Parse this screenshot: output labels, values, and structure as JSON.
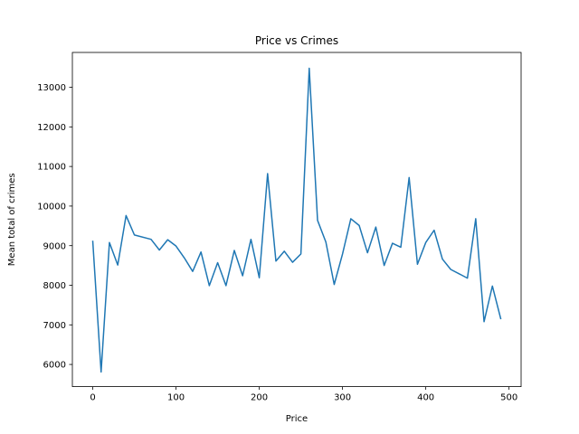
{
  "chart_data": {
    "type": "line",
    "title": "Price vs Crimes",
    "xlabel": "Price",
    "ylabel": "Mean total of crimes",
    "xlim": [
      -24.5,
      514.5
    ],
    "ylim": [
      5440,
      13880
    ],
    "xticks": [
      0,
      100,
      200,
      300,
      400,
      500
    ],
    "yticks": [
      6000,
      7000,
      8000,
      9000,
      10000,
      11000,
      12000,
      13000
    ],
    "grid": false,
    "legend": "none",
    "series": [
      {
        "color": "#1f77b4",
        "x": [
          0,
          10,
          20,
          30,
          40,
          50,
          70,
          80,
          90,
          100,
          110,
          120,
          130,
          140,
          150,
          160,
          170,
          180,
          190,
          200,
          210,
          220,
          230,
          240,
          250,
          260,
          270,
          280,
          290,
          300,
          310,
          320,
          330,
          340,
          350,
          360,
          370,
          380,
          390,
          400,
          410,
          420,
          430,
          450,
          460,
          470,
          480,
          490
        ],
        "y": [
          9110,
          5810,
          9080,
          8510,
          9760,
          9270,
          9160,
          8890,
          9150,
          8990,
          8690,
          8350,
          8840,
          7990,
          8570,
          7990,
          8880,
          8240,
          9160,
          8190,
          10820,
          8610,
          8860,
          8580,
          8790,
          13480,
          9640,
          9090,
          8020,
          8790,
          9680,
          9510,
          8820,
          9470,
          8500,
          9060,
          8960,
          10720,
          8530,
          9080,
          9390,
          8660,
          8400,
          8180,
          9680,
          7080,
          7980,
          7160
        ]
      }
    ]
  }
}
